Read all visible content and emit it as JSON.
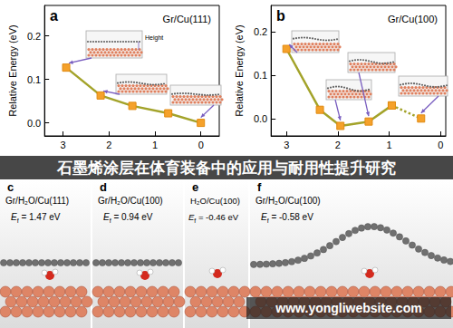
{
  "chart_data": [
    {
      "type": "line",
      "title": "Gr/Cu(111)",
      "annotations": [
        "a",
        "Height"
      ],
      "ylabel": "Relative Energy (eV)",
      "x": [
        2.93,
        2.18,
        1.49,
        0.71,
        0
      ],
      "series": [
        {
          "color": "#a3a32a",
          "marker": "square",
          "line_style": "solid",
          "values": [
            0.127,
            0.063,
            0.039,
            0.022,
            0
          ]
        }
      ],
      "xlim": [
        -0.4,
        3.4
      ],
      "xticks": [
        3,
        2,
        1,
        0
      ],
      "ylim": [
        -0.03,
        0.27
      ],
      "yticks": [
        {
          "value": 0,
          "label": "0.0"
        },
        {
          "value": 0.1,
          "label": "0.1"
        },
        {
          "value": 0.2,
          "label": "0.2"
        }
      ],
      "grid": false
    },
    {
      "type": "line",
      "title": "Gr/Cu(100)",
      "annotations": [
        "b"
      ],
      "ylabel": "Relative Energy (eV)",
      "series": [
        {
          "color": "#a3a32a",
          "marker": "square",
          "line_style": "solid",
          "x": [
            3.0,
            2.35,
            1.95,
            1.4,
            0.95
          ],
          "values": [
            0.16,
            0.02,
            -0.017,
            -0.007,
            0.03
          ]
        },
        {
          "color": "#a3a32a",
          "marker": "square",
          "line_style": "dotted",
          "x": [
            0.95,
            0.38
          ],
          "values": [
            0.03,
            0.0
          ]
        }
      ],
      "xlim": [
        -0.1,
        3.3
      ],
      "xticks": [
        3,
        2,
        1,
        0
      ],
      "ylim": [
        -0.04,
        0.26
      ],
      "yticks": [
        {
          "value": 0,
          "label": "0.0"
        },
        {
          "value": 0.1,
          "label": "0.1"
        },
        {
          "value": 0.2,
          "label": "0.2"
        }
      ],
      "grid": false
    }
  ],
  "banner": "石墨烯涂层在体育装备中的应用与耐用性提升研究",
  "panels": [
    {
      "label": "c",
      "title": "Gr/H₂O/Cu(111)",
      "energy": {
        "symbol": "E",
        "subscript": "f",
        "text": " = 1.47 eV"
      }
    },
    {
      "label": "d",
      "title": "Gr/H₂O/Cu(100)",
      "energy": {
        "symbol": "E",
        "subscript": "f",
        "text": " = 0.94 eV"
      }
    },
    {
      "label": "e",
      "title": "H₂O/Cu(100)",
      "energy": {
        "symbol": "E",
        "subscript": "f",
        "text": " = -0.46 eV"
      }
    },
    {
      "label": "f",
      "title": "Gr/H₂O/Cu(100)",
      "energy": {
        "symbol": "E",
        "subscript": "f",
        "text": " = -0.58 eV"
      }
    }
  ],
  "watermark": "www.yongliwebsite.com"
}
